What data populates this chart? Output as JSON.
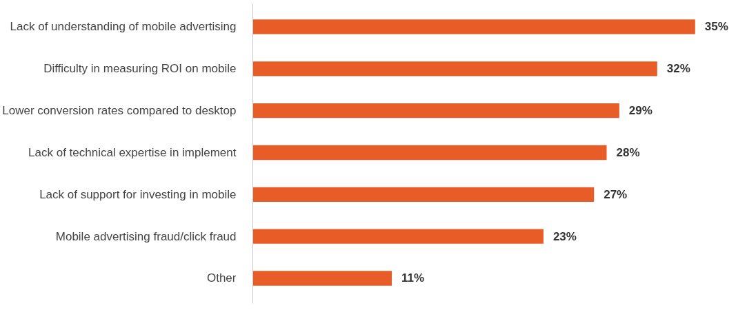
{
  "chart_data": {
    "type": "bar",
    "orientation": "horizontal",
    "categories": [
      "Lack of understanding of mobile advertising",
      "Difficulty in measuring ROI on mobile",
      "Lower conversion rates compared to desktop",
      "Lack of technical expertise in implement",
      "Lack of support for investing in mobile",
      "Mobile advertising fraud/click fraud",
      "Other"
    ],
    "values": [
      35,
      32,
      29,
      28,
      27,
      23,
      11
    ],
    "value_labels": [
      "35%",
      "32%",
      "29%",
      "28%",
      "27%",
      "23%",
      "11%"
    ],
    "color": "#e85c27",
    "grid": false
  }
}
